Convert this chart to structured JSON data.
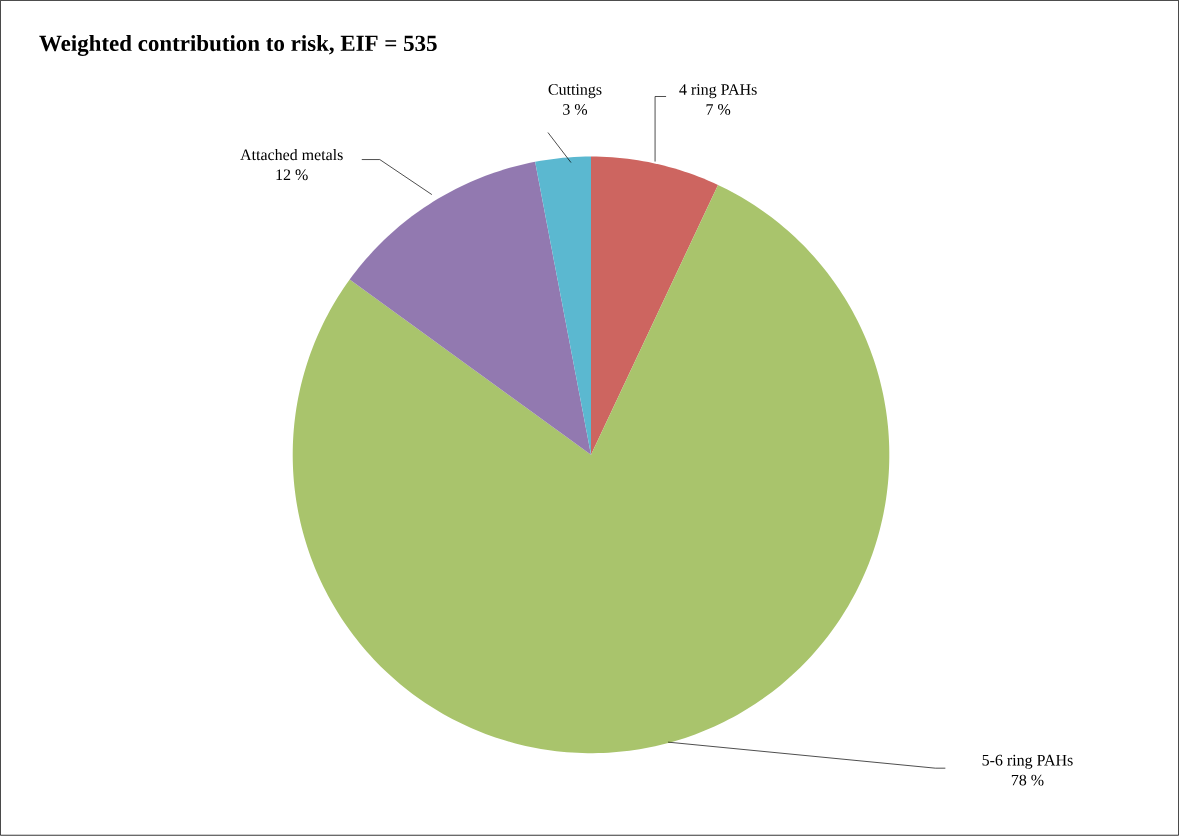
{
  "chart_data": {
    "type": "pie",
    "title": "Weighted contribution to risk, EIF = 535",
    "categories": [
      "4 ring PAHs",
      "5-6 ring PAHs",
      "Attached metals",
      "Cuttings"
    ],
    "values": [
      7,
      78,
      12,
      3
    ],
    "value_labels": [
      "7 %",
      "78 %",
      "12 %",
      "3 %"
    ],
    "colors": [
      "#cd6560",
      "#a9c46c",
      "#9279b0",
      "#5bb8d0"
    ]
  }
}
